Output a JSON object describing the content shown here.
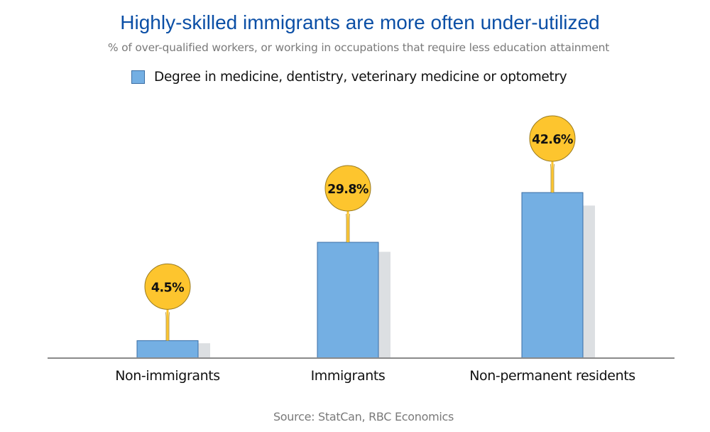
{
  "chart_data": {
    "type": "bar",
    "title": "Highly-skilled immigrants are more often under-utilized",
    "subtitle": "% of over-qualified workers, or working in occupations that require less education attainment",
    "categories": [
      "Non-immigrants",
      "Immigrants",
      "Non-permanent residents"
    ],
    "series": [
      {
        "name": "Degree in medicine, dentistry, veterinary medicine or optometry",
        "values": [
          4.5,
          29.8,
          42.6
        ],
        "data_labels": [
          "4.5%",
          "29.8%",
          "42.6%"
        ],
        "color": "#74afe3"
      }
    ],
    "xlabel": "",
    "ylabel": "",
    "ylim": [
      0,
      42.6
    ],
    "grid": false,
    "legend_position": "top-center",
    "source": "Source: StatCan, RBC Economics",
    "callout_color": "#fdc52e"
  }
}
